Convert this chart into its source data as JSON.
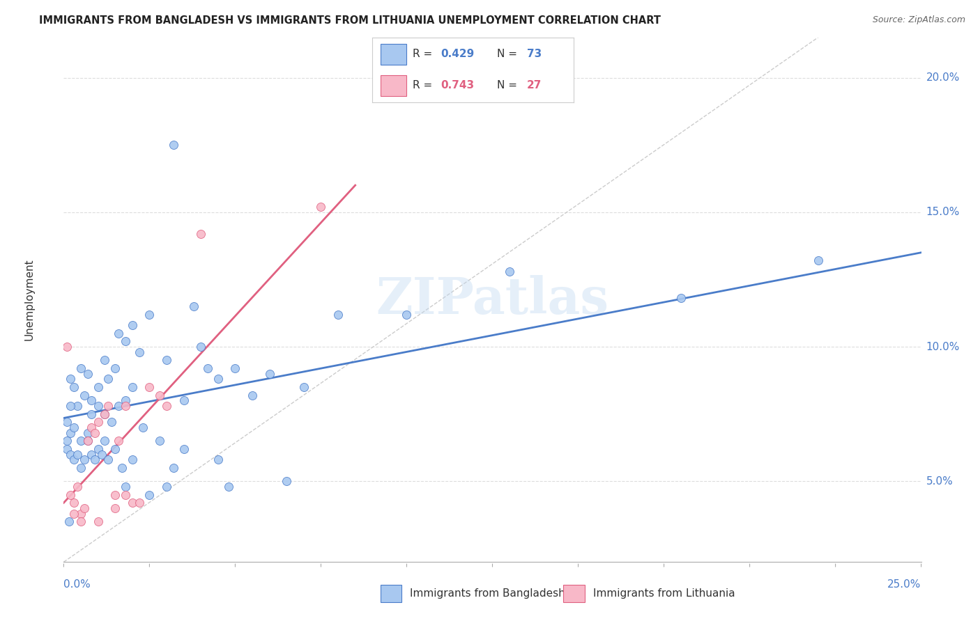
{
  "title": "IMMIGRANTS FROM BANGLADESH VS IMMIGRANTS FROM LITHUANIA UNEMPLOYMENT CORRELATION CHART",
  "source": "Source: ZipAtlas.com",
  "ylabel": "Unemployment",
  "yticks": [
    5.0,
    10.0,
    15.0,
    20.0
  ],
  "ytick_labels": [
    "5.0%",
    "10.0%",
    "15.0%",
    "20.0%"
  ],
  "xlim": [
    0.0,
    25.0
  ],
  "ylim": [
    2.0,
    21.5
  ],
  "watermark": "ZIPatlas",
  "color_bangladesh": "#a8c8f0",
  "color_lithuania": "#f8b8c8",
  "color_bangladesh_line": "#4a7cc9",
  "color_lithuania_line": "#e06080",
  "color_diagonal": "#cccccc",
  "bangladesh_points": [
    [
      0.2,
      8.8
    ],
    [
      0.3,
      8.5
    ],
    [
      0.5,
      9.2
    ],
    [
      0.7,
      9.0
    ],
    [
      0.4,
      7.8
    ],
    [
      0.6,
      8.2
    ],
    [
      0.8,
      8.0
    ],
    [
      1.0,
      8.5
    ],
    [
      1.2,
      9.5
    ],
    [
      1.3,
      8.8
    ],
    [
      1.5,
      9.2
    ],
    [
      1.6,
      10.5
    ],
    [
      1.8,
      10.2
    ],
    [
      2.0,
      10.8
    ],
    [
      2.2,
      9.8
    ],
    [
      2.5,
      11.2
    ],
    [
      0.1,
      6.5
    ],
    [
      0.2,
      6.8
    ],
    [
      0.3,
      7.0
    ],
    [
      0.5,
      6.5
    ],
    [
      0.7,
      6.8
    ],
    [
      0.8,
      7.5
    ],
    [
      1.0,
      7.8
    ],
    [
      1.2,
      7.5
    ],
    [
      1.4,
      7.2
    ],
    [
      1.6,
      7.8
    ],
    [
      1.8,
      8.0
    ],
    [
      2.0,
      8.5
    ],
    [
      0.1,
      6.2
    ],
    [
      0.2,
      6.0
    ],
    [
      0.3,
      5.8
    ],
    [
      0.4,
      6.0
    ],
    [
      0.5,
      5.5
    ],
    [
      0.6,
      5.8
    ],
    [
      0.7,
      6.5
    ],
    [
      0.8,
      6.0
    ],
    [
      0.9,
      5.8
    ],
    [
      1.0,
      6.2
    ],
    [
      1.1,
      6.0
    ],
    [
      1.2,
      6.5
    ],
    [
      1.3,
      5.8
    ],
    [
      1.5,
      6.2
    ],
    [
      1.7,
      5.5
    ],
    [
      2.0,
      5.8
    ],
    [
      2.3,
      7.0
    ],
    [
      3.0,
      9.5
    ],
    [
      3.2,
      17.5
    ],
    [
      3.5,
      8.0
    ],
    [
      3.8,
      11.5
    ],
    [
      4.0,
      10.0
    ],
    [
      4.2,
      9.2
    ],
    [
      4.5,
      8.8
    ],
    [
      5.0,
      9.2
    ],
    [
      5.5,
      8.2
    ],
    [
      6.0,
      9.0
    ],
    [
      6.5,
      5.0
    ],
    [
      7.0,
      8.5
    ],
    [
      8.0,
      11.2
    ],
    [
      10.0,
      11.2
    ],
    [
      13.0,
      12.8
    ],
    [
      18.0,
      11.8
    ],
    [
      22.0,
      13.2
    ],
    [
      0.15,
      3.5
    ],
    [
      1.8,
      4.8
    ],
    [
      2.5,
      4.5
    ],
    [
      3.0,
      4.8
    ],
    [
      3.5,
      6.2
    ],
    [
      2.8,
      6.5
    ],
    [
      3.2,
      5.5
    ],
    [
      4.5,
      5.8
    ],
    [
      4.8,
      4.8
    ],
    [
      0.1,
      7.2
    ],
    [
      0.2,
      7.8
    ]
  ],
  "lithuania_points": [
    [
      0.1,
      10.0
    ],
    [
      0.2,
      4.5
    ],
    [
      0.3,
      4.2
    ],
    [
      0.4,
      4.8
    ],
    [
      0.5,
      3.8
    ],
    [
      0.6,
      4.0
    ],
    [
      0.7,
      6.5
    ],
    [
      0.8,
      7.0
    ],
    [
      0.9,
      6.8
    ],
    [
      1.0,
      7.2
    ],
    [
      1.2,
      7.5
    ],
    [
      1.3,
      7.8
    ],
    [
      1.5,
      4.5
    ],
    [
      1.6,
      6.5
    ],
    [
      1.8,
      4.5
    ],
    [
      2.0,
      4.2
    ],
    [
      2.2,
      4.2
    ],
    [
      2.5,
      8.5
    ],
    [
      2.8,
      8.2
    ],
    [
      3.0,
      7.8
    ],
    [
      0.3,
      3.8
    ],
    [
      0.5,
      3.5
    ],
    [
      1.0,
      3.5
    ],
    [
      1.5,
      4.0
    ],
    [
      7.5,
      15.2
    ],
    [
      4.0,
      14.2
    ],
    [
      1.8,
      7.8
    ]
  ],
  "bangladesh_line": {
    "x0": 0.0,
    "y0": 7.35,
    "x1": 25.0,
    "y1": 13.5
  },
  "lithuania_line": {
    "x0": 0.0,
    "y0": 4.2,
    "x1": 8.5,
    "y1": 16.0
  },
  "diagonal_line": {
    "x0": 0.0,
    "y0": 2.0,
    "x1": 22.0,
    "y1": 21.5
  }
}
